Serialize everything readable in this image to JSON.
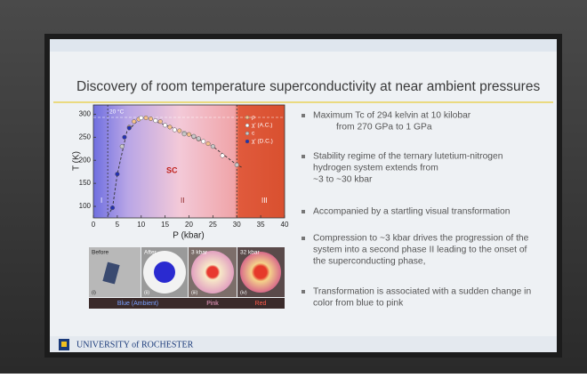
{
  "slide": {
    "title": "Discovery of room temperature  superconductivity at near ambient pressures",
    "bullets": [
      [
        "Maximum Tc of 294 kelvin at 10 kilobar",
        "from 270 GPa to 1 GPa"
      ],
      [
        "Stability regime of the ternary lutetium-nitrogen",
        "hydrogen system extends from",
        "~3 to ~30 kbar"
      ],
      [
        "Accompanied by a startling visual transformation"
      ],
      [
        "Compression to ~3 kbar drives the progression of the",
        "system into a second phase II leading to the onset of",
        "the superconducting phase,"
      ],
      [
        "Transformation is associated with a sudden change in",
        "color from blue to pink"
      ]
    ],
    "footer": "UNIVERSITY of ROCHESTER"
  },
  "chart_data": {
    "type": "scatter",
    "xlabel": "P (kbar)",
    "ylabel": "T (K)",
    "xlim": [
      0,
      40
    ],
    "ylim": [
      75,
      320
    ],
    "xticks": [
      0,
      5,
      10,
      15,
      20,
      25,
      30,
      35,
      40
    ],
    "yticks": [
      100,
      150,
      200,
      250,
      300
    ],
    "regions": [
      "I",
      "SC",
      "II",
      "III"
    ],
    "room_temperature": {
      "value": 293,
      "label": "20 °C"
    },
    "phase_edges": [
      3,
      30
    ],
    "boundary": {
      "x": [
        3,
        4,
        5,
        7,
        10,
        15,
        20,
        25,
        30,
        31
      ],
      "values": [
        80,
        97,
        170,
        262,
        294,
        277,
        257,
        230,
        190,
        185
      ]
    },
    "legend": "upper right",
    "series": [
      {
        "name": "ρ",
        "color": "#f6c08a",
        "x": [
          7.5,
          8.5,
          9.5,
          11,
          12,
          14,
          16,
          18,
          20,
          22,
          24
        ],
        "values": [
          272,
          284,
          289,
          292,
          290,
          284,
          272,
          264,
          256,
          246,
          236
        ]
      },
      {
        "name": "χ' (A.C.)",
        "color": "#ffffff",
        "x": [
          10,
          13,
          15,
          17,
          19,
          21,
          23,
          27
        ],
        "values": [
          292,
          286,
          276,
          266,
          259,
          251,
          241,
          210
        ]
      },
      {
        "name": "c",
        "color": "#c8c8c8",
        "x": [
          6,
          19,
          21,
          22,
          25,
          30
        ],
        "values": [
          230,
          257,
          252,
          247,
          230,
          190
        ]
      },
      {
        "name": "χ' (D.C.)",
        "color": "#2430b0",
        "x": [
          4,
          5,
          6.5,
          7.5
        ],
        "values": [
          97,
          170,
          250,
          270
        ]
      }
    ]
  },
  "photos": {
    "items": [
      {
        "label": "Before",
        "index": "(i)"
      },
      {
        "label": "After",
        "index": "(ii)"
      },
      {
        "label": "3 kbar",
        "index": "(iii)"
      },
      {
        "label": "32 kbar",
        "index": "(iv)"
      }
    ],
    "captions": [
      "Blue (Ambient)",
      "Pink",
      "Red"
    ]
  }
}
